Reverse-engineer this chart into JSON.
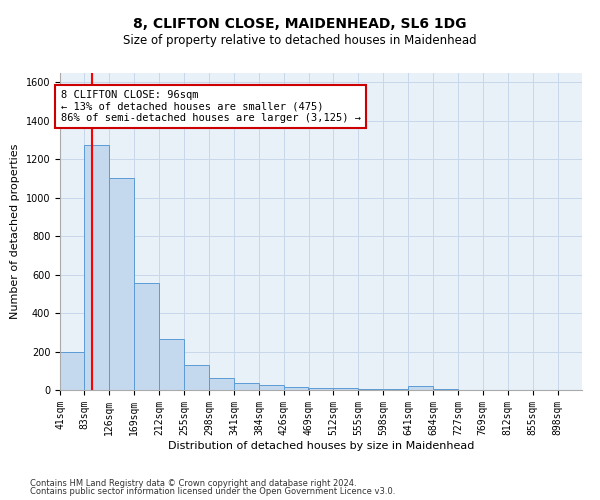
{
  "title": "8, CLIFTON CLOSE, MAIDENHEAD, SL6 1DG",
  "subtitle": "Size of property relative to detached houses in Maidenhead",
  "xlabel": "Distribution of detached houses by size in Maidenhead",
  "ylabel": "Number of detached properties",
  "footnote1": "Contains HM Land Registry data © Crown copyright and database right 2024.",
  "footnote2": "Contains public sector information licensed under the Open Government Licence v3.0.",
  "bar_edges": [
    41,
    83,
    126,
    169,
    212,
    255,
    298,
    341,
    384,
    426,
    469,
    512,
    555,
    598,
    641,
    684,
    727,
    769,
    812,
    855,
    898
  ],
  "bar_heights": [
    200,
    1275,
    1100,
    555,
    265,
    130,
    60,
    35,
    25,
    15,
    10,
    8,
    5,
    4,
    20,
    3,
    2,
    1,
    1,
    1
  ],
  "bar_color": "#c5d9ee",
  "bar_edge_color": "#5b9bd5",
  "red_line_x": 96,
  "annotation_text": "8 CLIFTON CLOSE: 96sqm\n← 13% of detached houses are smaller (475)\n86% of semi-detached houses are larger (3,125) →",
  "annotation_box_color": "#ffffff",
  "annotation_box_edge": "#cc0000",
  "ylim": [
    0,
    1650
  ],
  "yticks": [
    0,
    200,
    400,
    600,
    800,
    1000,
    1200,
    1400,
    1600
  ],
  "title_fontsize": 10,
  "subtitle_fontsize": 8.5,
  "xlabel_fontsize": 8,
  "ylabel_fontsize": 8,
  "tick_fontsize": 7,
  "annot_fontsize": 7.5,
  "footnote_fontsize": 6,
  "grid_color": "#c8d8ea",
  "background_color": "#e8f0f8"
}
